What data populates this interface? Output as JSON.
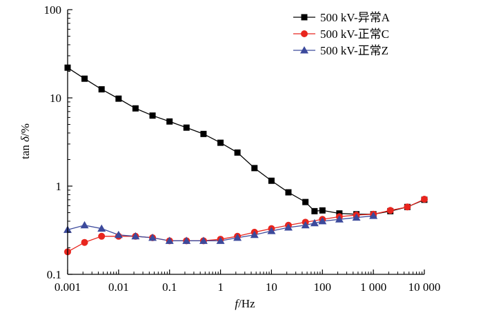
{
  "chart_data": {
    "type": "line",
    "xscale": "log",
    "yscale": "log",
    "xlim": [
      0.001,
      10000
    ],
    "ylim": [
      0.1,
      100
    ],
    "xlabel": {
      "italic": "f",
      "rest": "/Hz"
    },
    "ylabel": {
      "prefix": "tan ",
      "italic": "δ",
      "rest": "/%"
    },
    "xticks": [
      {
        "value": 0.001,
        "label": "0.001"
      },
      {
        "value": 0.01,
        "label": "0.01"
      },
      {
        "value": 0.1,
        "label": "0.1"
      },
      {
        "value": 1,
        "label": "1"
      },
      {
        "value": 10,
        "label": "10"
      },
      {
        "value": 100,
        "label": "100"
      },
      {
        "value": 1000,
        "label": "1 000"
      },
      {
        "value": 10000,
        "label": "10 000"
      }
    ],
    "yticks": [
      {
        "value": 0.1,
        "label": "0.1"
      },
      {
        "value": 1,
        "label": "1"
      },
      {
        "value": 10,
        "label": "10"
      },
      {
        "value": 100,
        "label": "100"
      }
    ],
    "grid": false,
    "legend_position": "top-right",
    "series": [
      {
        "name": "500 kV-异常A",
        "color": "#000000",
        "marker": "square",
        "x": [
          0.001,
          0.00215,
          0.00464,
          0.01,
          0.0215,
          0.0464,
          0.1,
          0.215,
          0.464,
          1,
          2.15,
          4.64,
          10,
          21.5,
          46.4,
          70,
          100,
          215,
          464,
          1000,
          2150,
          4640,
          10000
        ],
        "y": [
          22,
          16.5,
          12.5,
          9.8,
          7.6,
          6.3,
          5.4,
          4.6,
          3.9,
          3.1,
          2.4,
          1.6,
          1.15,
          0.85,
          0.66,
          0.52,
          0.53,
          0.49,
          0.48,
          0.48,
          0.52,
          0.58,
          0.7
        ]
      },
      {
        "name": "500 kV-正常C",
        "color": "#e8251e",
        "marker": "circle",
        "x": [
          0.001,
          0.00215,
          0.00464,
          0.01,
          0.0215,
          0.0464,
          0.1,
          0.215,
          0.464,
          1,
          2.15,
          4.64,
          10,
          21.5,
          46.4,
          100,
          215,
          464,
          1000,
          2150,
          4640,
          10000
        ],
        "y": [
          0.18,
          0.23,
          0.27,
          0.27,
          0.27,
          0.26,
          0.24,
          0.24,
          0.24,
          0.25,
          0.27,
          0.3,
          0.33,
          0.36,
          0.39,
          0.42,
          0.45,
          0.47,
          0.48,
          0.53,
          0.58,
          0.71
        ]
      },
      {
        "name": "500 kV-正常Z",
        "color": "#3c4a9c",
        "marker": "triangle",
        "x": [
          0.001,
          0.00215,
          0.00464,
          0.01,
          0.0215,
          0.0464,
          0.1,
          0.215,
          0.464,
          1,
          2.15,
          4.64,
          10,
          21.5,
          46.4,
          70,
          100,
          215,
          464,
          1000
        ],
        "y": [
          0.32,
          0.36,
          0.33,
          0.28,
          0.27,
          0.26,
          0.24,
          0.24,
          0.24,
          0.24,
          0.26,
          0.28,
          0.31,
          0.34,
          0.36,
          0.38,
          0.4,
          0.42,
          0.44,
          0.46
        ]
      }
    ]
  }
}
